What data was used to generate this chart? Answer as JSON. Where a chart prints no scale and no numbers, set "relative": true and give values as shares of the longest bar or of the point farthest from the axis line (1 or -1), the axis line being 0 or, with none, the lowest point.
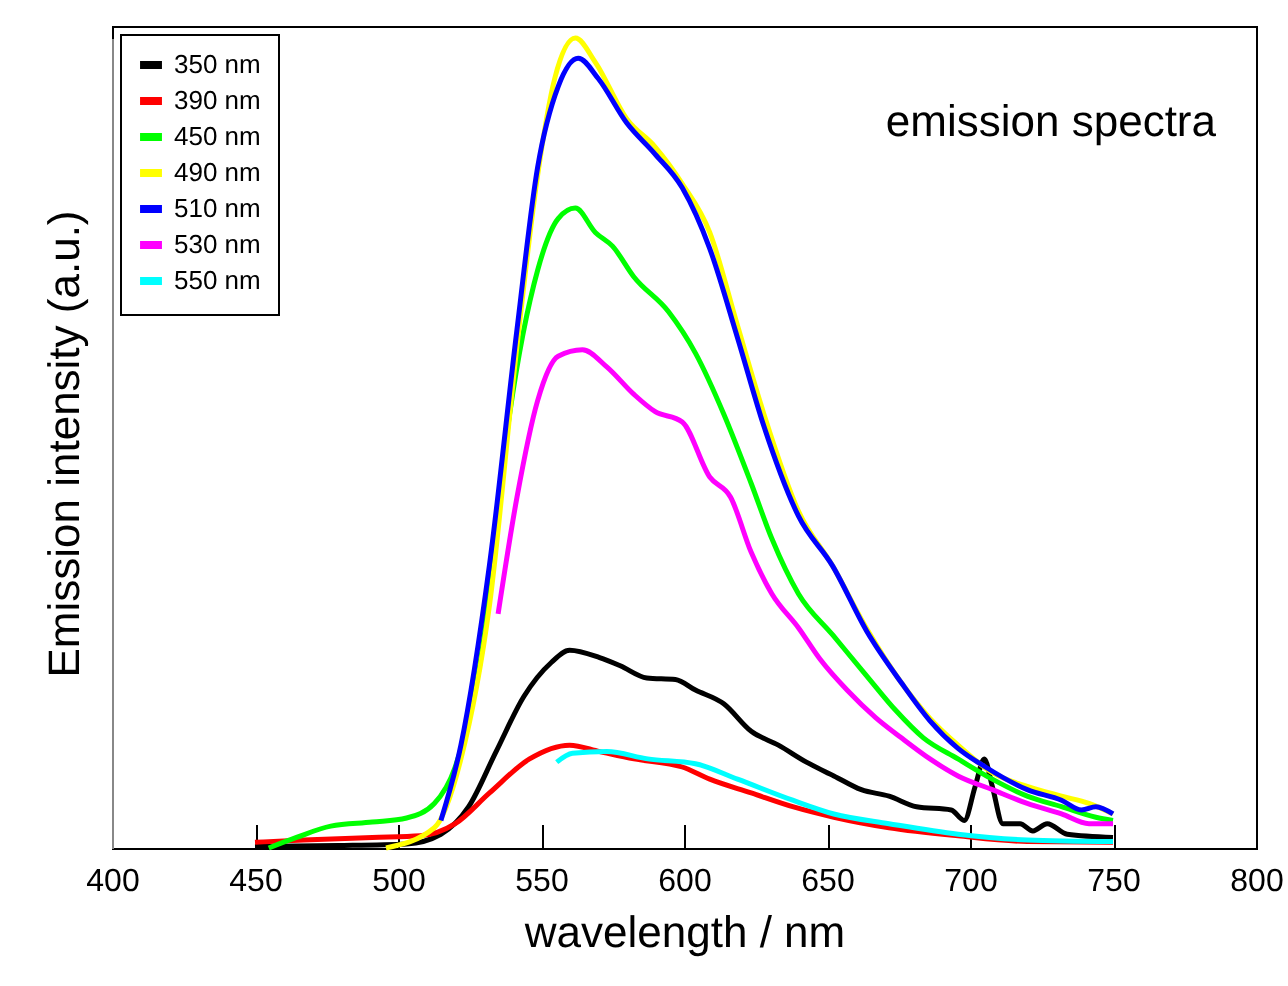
{
  "chart_data": {
    "type": "line",
    "xlabel": "wavelength / nm",
    "ylabel": "Emission intensity (a.u.)",
    "annotations": [
      "emission spectra"
    ],
    "xlim": [
      400,
      800
    ],
    "xticks": [
      400,
      450,
      500,
      550,
      600,
      650,
      700,
      750,
      800
    ],
    "relative": true,
    "legend": "top left",
    "series": [
      {
        "name": "350 nm",
        "color": "#000000",
        "x": [
          450,
          479,
          503,
          515,
          524.7,
          534.3,
          544,
          553.6,
          560,
          570.5,
          577.7,
          587,
          597,
          604,
          613.9,
          623.5,
          633,
          642.8,
          652.4,
          662,
          671.7,
          681.3,
          693.4,
          698,
          701.8,
          705,
          707.8,
          711.5,
          717.5,
          722,
          727,
          734,
          750
        ],
        "values": [
          0.002,
          0.003,
          0.005,
          0.017,
          0.051,
          0.119,
          0.187,
          0.229,
          0.244,
          0.235,
          0.225,
          0.21,
          0.208,
          0.195,
          0.178,
          0.144,
          0.127,
          0.106,
          0.089,
          0.072,
          0.064,
          0.051,
          0.047,
          0.034,
          0.076,
          0.11,
          0.076,
          0.03,
          0.03,
          0.021,
          0.03,
          0.017,
          0.013
        ]
      },
      {
        "name": "390 nm",
        "color": "#ff0000",
        "x": [
          450,
          467,
          491,
          507.8,
          520,
          532,
          546,
          560,
          570.5,
          582.5,
          599.4,
          609,
          623.5,
          638,
          652.4,
          671.7,
          695.8,
          720,
          750
        ],
        "values": [
          0.007,
          0.01,
          0.013,
          0.015,
          0.03,
          0.068,
          0.11,
          0.127,
          0.119,
          0.11,
          0.1,
          0.085,
          0.068,
          0.051,
          0.038,
          0.025,
          0.015,
          0.008,
          0.007
        ]
      },
      {
        "name": "450 nm",
        "color": "#00ff00",
        "x": [
          454.8,
          464.5,
          476.5,
          491,
          503,
          512.7,
          520,
          529.5,
          539,
          548.8,
          556,
          562,
          569,
          575,
          582.5,
          594.6,
          604,
          614,
          623.5,
          630.7,
          640,
          652,
          664,
          674,
          683.7,
          695.8,
          707.8,
          720,
          732,
          744,
          750
        ],
        "values": [
          0.0,
          0.013,
          0.027,
          0.032,
          0.037,
          0.055,
          0.1,
          0.246,
          0.535,
          0.713,
          0.777,
          0.79,
          0.76,
          0.743,
          0.705,
          0.662,
          0.611,
          0.535,
          0.45,
          0.382,
          0.314,
          0.263,
          0.212,
          0.17,
          0.136,
          0.11,
          0.085,
          0.064,
          0.051,
          0.038,
          0.034
        ]
      },
      {
        "name": " 490 nm",
        "color": "#ffff00",
        "x": [
          495.8,
          512.7,
          522,
          532,
          541.6,
          548.8,
          554.8,
          562,
          569,
          580,
          589.8,
          599.4,
          609,
          618.7,
          628,
          640,
          652,
          664,
          676,
          686,
          695.8,
          707.8,
          720,
          732,
          741.6,
          750
        ],
        "values": [
          0.0,
          0.025,
          0.11,
          0.3,
          0.62,
          0.83,
          0.95,
          1.0,
          0.97,
          0.9,
          0.866,
          0.82,
          0.76,
          0.645,
          0.535,
          0.416,
          0.348,
          0.27,
          0.204,
          0.16,
          0.127,
          0.093,
          0.076,
          0.064,
          0.055,
          0.042
        ]
      },
      {
        "name": " 510 nm",
        "color": "#0000ff",
        "x": [
          515,
          522,
          532,
          541.6,
          548.8,
          556,
          563,
          570,
          580,
          589.8,
          599.4,
          609,
          618.7,
          628,
          640,
          652,
          664,
          676,
          686,
          695.8,
          705.4,
          720,
          732,
          739,
          744,
          750
        ],
        "values": [
          0.034,
          0.127,
          0.35,
          0.64,
          0.84,
          0.94,
          0.975,
          0.95,
          0.895,
          0.857,
          0.815,
          0.74,
          0.63,
          0.52,
          0.41,
          0.348,
          0.267,
          0.204,
          0.157,
          0.123,
          0.1,
          0.072,
          0.059,
          0.047,
          0.051,
          0.042
        ]
      },
      {
        "name": "530 nm",
        "color": "#ff00ff",
        "x": [
          535,
          541.6,
          548.8,
          556,
          564.5,
          573,
          582.5,
          589.8,
          599.4,
          609,
          616.3,
          623.5,
          630.7,
          640,
          647.6,
          657,
          667,
          676,
          686,
          695.8,
          707.8,
          720,
          732,
          741.6,
          750
        ],
        "values": [
          0.289,
          0.433,
          0.552,
          0.607,
          0.615,
          0.594,
          0.56,
          0.539,
          0.526,
          0.458,
          0.433,
          0.365,
          0.314,
          0.272,
          0.233,
          0.195,
          0.161,
          0.136,
          0.11,
          0.089,
          0.072,
          0.055,
          0.042,
          0.03,
          0.03
        ]
      },
      {
        "name": "550 nm",
        "color": "#00ffff",
        "x": [
          555.5,
          561,
          573,
          587.3,
          604,
          618.7,
          638,
          652.4,
          671.7,
          695.8,
          720,
          750
        ],
        "values": [
          0.106,
          0.117,
          0.119,
          0.11,
          0.104,
          0.085,
          0.059,
          0.042,
          0.03,
          0.017,
          0.01,
          0.008
        ]
      }
    ]
  }
}
